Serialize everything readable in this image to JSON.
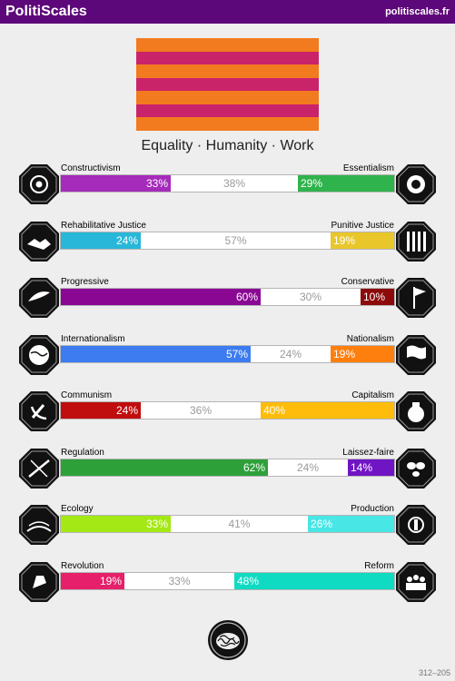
{
  "header": {
    "title": "PolitiScales",
    "site": "politiscales.fr"
  },
  "flag": {
    "stripes": [
      "#f27a1f",
      "#c9236a",
      "#f27a1f",
      "#c9236a",
      "#f27a1f",
      "#c9236a",
      "#f27a1f"
    ]
  },
  "motto": "Equality · Humanity · Work",
  "axes": [
    {
      "left_label": "Constructivism",
      "right_label": "Essentialism",
      "left_pct": 33,
      "mid_pct": 38,
      "right_pct": 29,
      "left_value": "33%",
      "mid_value": "38%",
      "right_value": "29%",
      "left_color": "#a52bba",
      "right_color": "#2fb34c",
      "left_icon": "eye-icon",
      "right_icon": "dna-icon"
    },
    {
      "left_label": "Rehabilitative Justice",
      "right_label": "Punitive Justice",
      "left_pct": 24,
      "mid_pct": 57,
      "right_pct": 19,
      "left_value": "24%",
      "mid_value": "57%",
      "right_value": "19%",
      "left_color": "#28b7d8",
      "right_color": "#e9c72a",
      "left_icon": "handshake-icon",
      "right_icon": "prison-bars-icon"
    },
    {
      "left_label": "Progressive",
      "right_label": "Conservative",
      "left_pct": 60,
      "mid_pct": 30,
      "right_pct": 10,
      "left_value": "60%",
      "mid_value": "30%",
      "right_value": "10%",
      "left_color": "#8a0793",
      "right_color": "#8c0a0a",
      "left_icon": "wind-icon",
      "right_icon": "flag-pole-icon"
    },
    {
      "left_label": "Internationalism",
      "right_label": "Nationalism",
      "left_pct": 57,
      "mid_pct": 24,
      "right_pct": 19,
      "left_value": "57%",
      "mid_value": "24%",
      "right_value": "19%",
      "left_color": "#3c7cf0",
      "right_color": "#ff7f0e",
      "left_icon": "globe-icon",
      "right_icon": "waving-flag-icon"
    },
    {
      "left_label": "Communism",
      "right_label": "Capitalism",
      "left_pct": 24,
      "mid_pct": 36,
      "right_pct": 40,
      "left_value": "24%",
      "mid_value": "36%",
      "right_value": "40%",
      "left_color": "#c00d0d",
      "right_color": "#ffbc0a",
      "left_icon": "hammer-sickle-icon",
      "right_icon": "money-bag-icon"
    },
    {
      "left_label": "Regulation",
      "right_label": "Laissez-faire",
      "left_pct": 62,
      "mid_pct": 24,
      "right_pct": 14,
      "left_value": "62%",
      "mid_value": "24%",
      "right_value": "14%",
      "left_color": "#2ea03a",
      "right_color": "#7015c4",
      "left_icon": "scales-icon",
      "right_icon": "butterflies-icon"
    },
    {
      "left_label": "Ecology",
      "right_label": "Production",
      "left_pct": 33,
      "mid_pct": 41,
      "right_pct": 26,
      "left_value": "33%",
      "mid_value": "41%",
      "right_value": "26%",
      "left_color": "#a4e815",
      "right_color": "#49e6e6",
      "left_icon": "field-icon",
      "right_icon": "factory-icon"
    },
    {
      "left_label": "Revolution",
      "right_label": "Reform",
      "left_pct": 19,
      "mid_pct": 33,
      "right_pct": 48,
      "left_value": "19%",
      "mid_value": "33%",
      "right_value": "48%",
      "left_color": "#e6206a",
      "right_color": "#0fdbc2",
      "left_icon": "fist-icon",
      "right_icon": "people-icon"
    }
  ],
  "footer": {
    "code": "312–205",
    "seal_icon": "brain-icon"
  }
}
